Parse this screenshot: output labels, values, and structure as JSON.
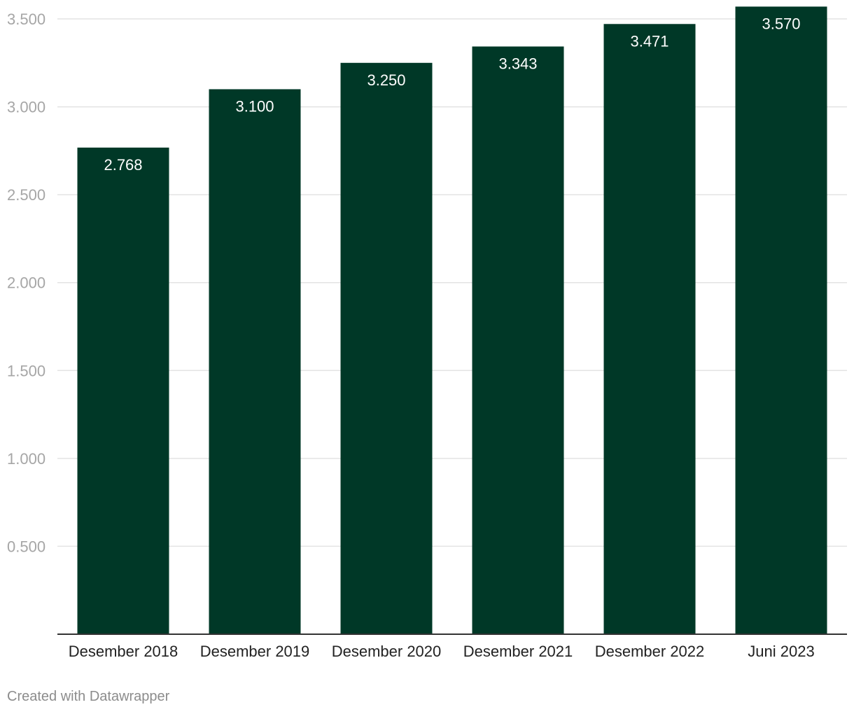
{
  "chart_data": {
    "type": "bar",
    "categories": [
      "Desember 2018",
      "Desember 2019",
      "Desember 2020",
      "Desember 2021",
      "Desember 2022",
      "Juni 2023"
    ],
    "values": [
      2.768,
      3.1,
      3.25,
      3.343,
      3.471,
      3.57
    ],
    "value_labels": [
      "2.768",
      "3.100",
      "3.250",
      "3.343",
      "3.471",
      "3.570"
    ],
    "y_ticks": [
      0.5,
      1.0,
      1.5,
      2.0,
      2.5,
      3.0,
      3.5
    ],
    "y_tick_labels": [
      "0.500",
      "1.000",
      "1.500",
      "2.000",
      "2.500",
      "3.000",
      "3.500"
    ],
    "ylim": [
      0,
      3.5
    ],
    "grid": true,
    "bar_color": "#003827",
    "title": "",
    "xlabel": "",
    "ylabel": ""
  },
  "footer": {
    "credit": "Created with Datawrapper"
  }
}
